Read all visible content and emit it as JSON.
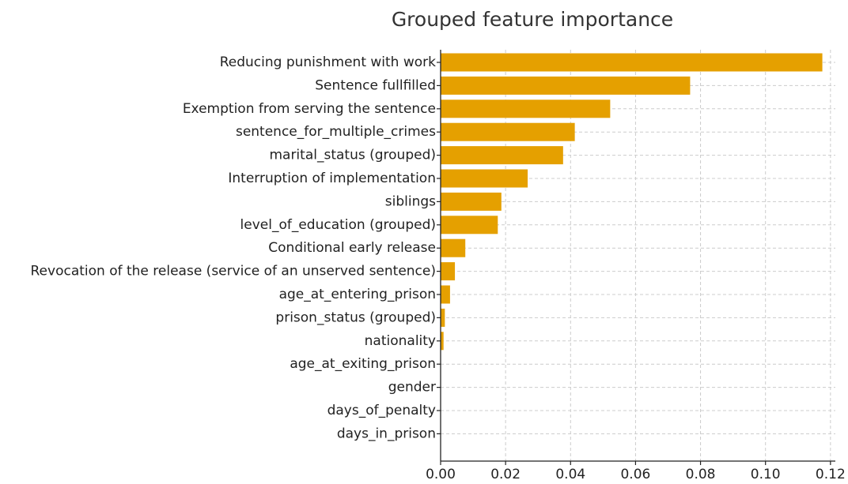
{
  "chart_data": {
    "type": "bar",
    "orientation": "horizontal",
    "title": "Grouped feature importance",
    "xlabel": "",
    "ylabel": "",
    "categories": [
      "Reducing punishment with work",
      "Sentence fullfilled",
      "Exemption from serving the sentence",
      "sentence_for_multiple_crimes",
      "marital_status (grouped)",
      "Interruption of implementation",
      "siblings",
      "level_of_education (grouped)",
      "Conditional early release",
      "Revocation of the release (service of an unserved sentence)",
      "age_at_entering_prison",
      "prison_status (grouped)",
      "nationality",
      "age_at_exiting_prison",
      "gender",
      "days_of_penalty",
      "days_in_prison"
    ],
    "values": [
      0.1175,
      0.0768,
      0.0522,
      0.0413,
      0.0377,
      0.0268,
      0.0187,
      0.0176,
      0.0076,
      0.0044,
      0.0029,
      0.0013,
      0.0009,
      0.0,
      0.0,
      0.0,
      0.0
    ],
    "xlim": [
      0,
      0.1215
    ],
    "xticks": [
      0.0,
      0.02,
      0.04,
      0.06,
      0.08,
      0.1,
      0.12
    ],
    "xtick_labels": [
      "0.00",
      "0.02",
      "0.04",
      "0.06",
      "0.08",
      "0.10",
      "0.12"
    ],
    "grid": true,
    "bar_color": "#e5a000",
    "grid_color": "#cccccc"
  }
}
